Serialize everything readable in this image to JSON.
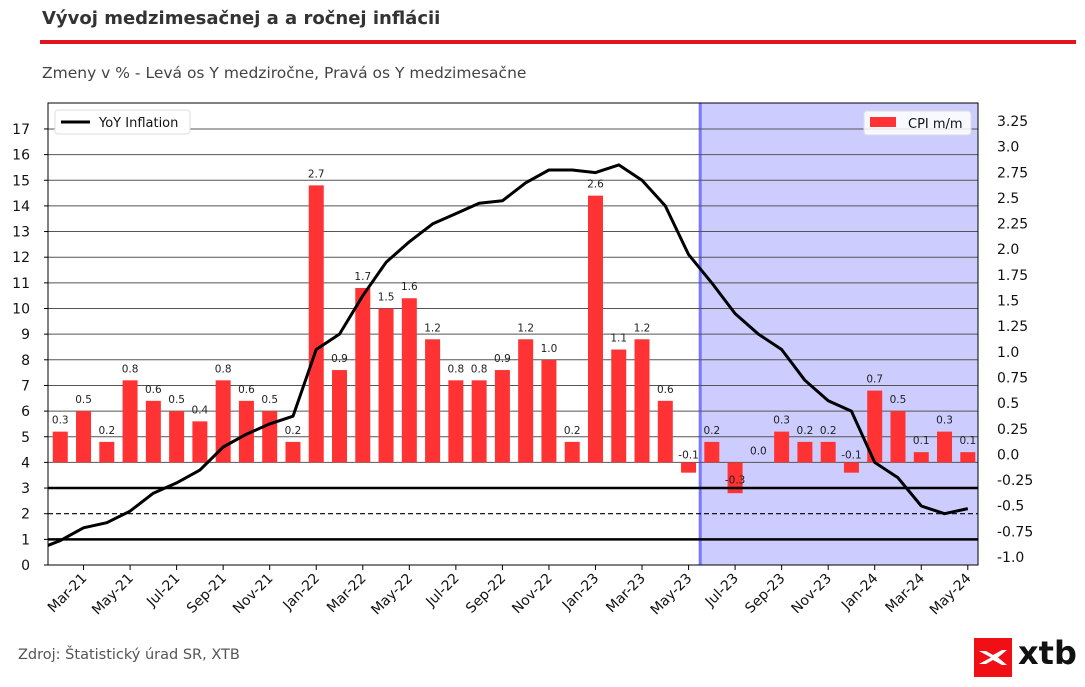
{
  "header": {
    "title": "Vývoj medzimesačnej a a ročnej inflácii",
    "subtitle": "Zmeny v % - Levá os Y medziročne, Pravá os Y medzimesačne"
  },
  "footer": {
    "source": "Zdroj: Štatistický úrad SR, XTB",
    "logo_text": "xtb"
  },
  "colors": {
    "title_rule": "#e3141c",
    "bar": "#ff3333",
    "line": "#000000",
    "shade": "#ccccff",
    "shade_edge": "#7777ff"
  },
  "chart_data": {
    "type": "bar+line",
    "title": "Vývoj medzimesačnej a a ročnej inflácii",
    "subtitle": "Zmeny v % - Levá os Y medziročne, Pravá os Y medzimesačne",
    "months": [
      "Jan-21",
      "Feb-21",
      "Mar-21",
      "Apr-21",
      "May-21",
      "Jun-21",
      "Jul-21",
      "Aug-21",
      "Sep-21",
      "Oct-21",
      "Nov-21",
      "Dec-21",
      "Jan-22",
      "Feb-22",
      "Mar-22",
      "Apr-22",
      "May-22",
      "Jun-22",
      "Jul-22",
      "Aug-22",
      "Sep-22",
      "Oct-22",
      "Nov-22",
      "Dec-22",
      "Jan-23",
      "Feb-23",
      "Mar-23",
      "Apr-23",
      "May-23",
      "Jun-23",
      "Jul-23",
      "Aug-23",
      "Sep-23",
      "Oct-23",
      "Nov-23",
      "Dec-23",
      "Jan-24",
      "Feb-24",
      "Mar-24",
      "Apr-24",
      "May-24"
    ],
    "x_tick_labels": [
      "Mar-21",
      "May-21",
      "Jul-21",
      "Sep-21",
      "Nov-21",
      "Jan-22",
      "Mar-22",
      "May-22",
      "Jul-22",
      "Sep-22",
      "Nov-22",
      "Jan-23",
      "Mar-23",
      "May-23",
      "Jul-23",
      "Sep-23",
      "Nov-23",
      "Jan-24",
      "Mar-24",
      "May-24"
    ],
    "series": [
      {
        "name": "YoY Inflation",
        "type": "line",
        "axis": "left",
        "values": [
          0.6,
          0.95,
          1.45,
          1.65,
          2.1,
          2.8,
          3.2,
          3.7,
          4.6,
          5.1,
          5.5,
          5.8,
          8.4,
          9.0,
          10.5,
          11.8,
          12.6,
          13.3,
          13.7,
          14.1,
          14.2,
          14.9,
          15.4,
          15.4,
          15.3,
          15.6,
          15.0,
          14.0,
          12.1,
          11.0,
          9.8,
          9.0,
          8.4,
          7.2,
          6.4,
          6.0,
          4.0,
          3.4,
          2.3,
          2.0,
          2.2
        ]
      },
      {
        "name": "CPI m/m",
        "type": "bar",
        "axis": "right",
        "values": [
          null,
          0.3,
          0.5,
          0.2,
          0.8,
          0.6,
          0.5,
          0.4,
          0.8,
          0.6,
          0.5,
          0.2,
          2.7,
          0.9,
          1.7,
          1.5,
          1.6,
          1.2,
          0.8,
          0.8,
          0.9,
          1.2,
          1.0,
          0.2,
          2.6,
          1.1,
          1.2,
          0.6,
          -0.1,
          0.2,
          -0.3,
          0.0,
          0.3,
          0.2,
          0.2,
          -0.1,
          0.7,
          0.5,
          0.1,
          0.3,
          0.1
        ],
        "labels": [
          "",
          "0.3",
          "0.5",
          "0.2",
          "0.8",
          "0.6",
          "0.5",
          "0.4",
          "0.8",
          "0.6",
          "0.5",
          "0.2",
          "2.7",
          "0.9",
          "1.7",
          "1.5",
          "1.6",
          "1.2",
          "0.8",
          "0.8",
          "0.9",
          "1.2",
          "1.0",
          "0.2",
          "2.6",
          "1.1",
          "1.2",
          "0.6",
          "-0.1",
          "0.2",
          "-0.3",
          "0.0",
          "0.3",
          "0.2",
          "0.2",
          "-0.1",
          "0.7",
          "0.5",
          "0.1",
          "0.3",
          "0.1"
        ]
      }
    ],
    "left_axis": {
      "ylim": [
        0,
        18
      ],
      "ticks": [
        "0",
        "1",
        "2",
        "3",
        "4",
        "5",
        "6",
        "7",
        "8",
        "9",
        "10",
        "11",
        "12",
        "13",
        "14",
        "15",
        "16",
        "17"
      ]
    },
    "right_axis": {
      "ylim": [
        -1.0,
        3.45
      ],
      "ticks": [
        "-1.0",
        "-0.75",
        "-0.5",
        "-0.25",
        "0.0",
        "0.25",
        "0.5",
        "0.75",
        "1.0",
        "1.25",
        "1.5",
        "1.75",
        "2.0",
        "2.25",
        "2.5",
        "2.75",
        "3.0",
        "3.25"
      ]
    },
    "reference_lines": [
      {
        "value": 1,
        "style": "solid-thick"
      },
      {
        "value": 2,
        "style": "dashed"
      },
      {
        "value": 3,
        "style": "solid-thick"
      }
    ],
    "grid": "horizontal, left-axis 4 to 17",
    "shaded_region": {
      "from_month_index": 28.5,
      "to": "end"
    },
    "legend": [
      {
        "label": "YoY Inflation",
        "placement": "top-left"
      },
      {
        "label": "CPI m/m",
        "placement": "top-right"
      }
    ]
  }
}
